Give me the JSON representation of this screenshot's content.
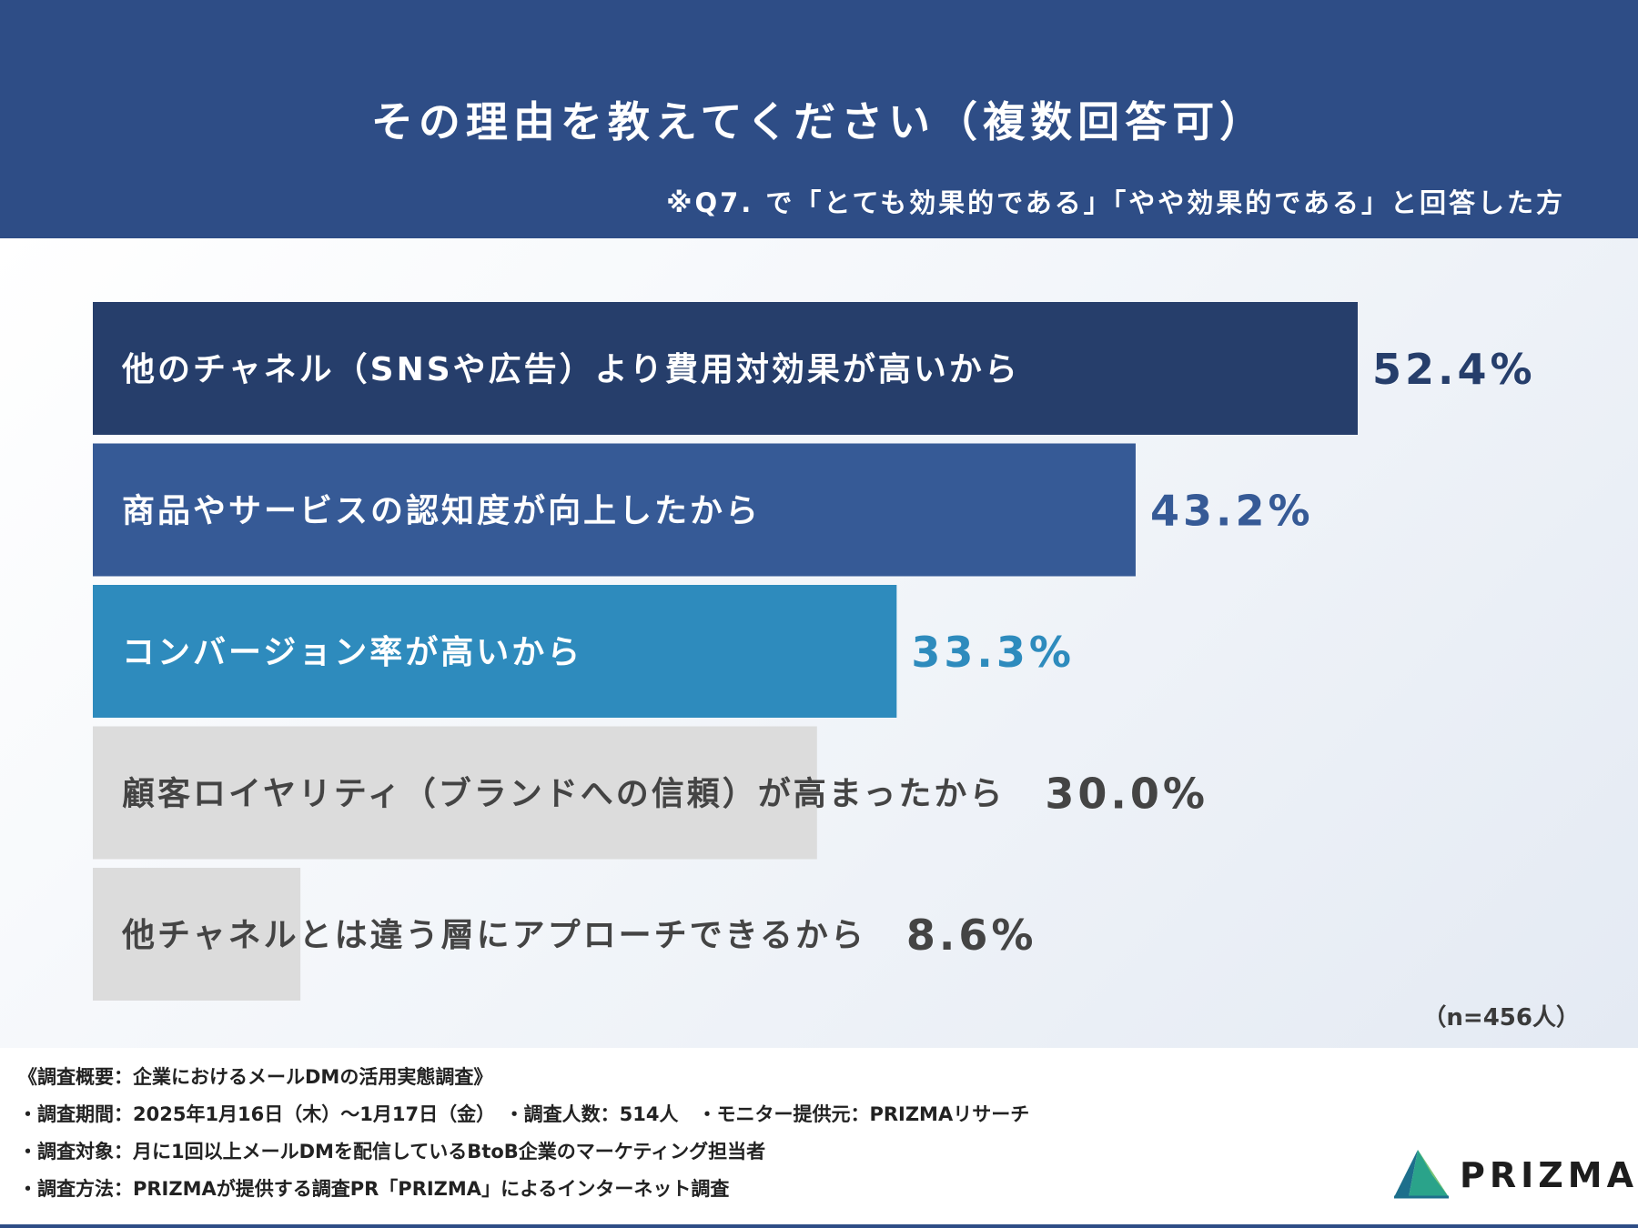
{
  "header": {
    "title": "その理由を教えてください（複数回答可）",
    "subnote": "※Q7. で「とても効果的である」「やや効果的である」と回答した方"
  },
  "chart_data": {
    "type": "bar",
    "orientation": "horizontal",
    "title": "その理由を教えてください（複数回答可）",
    "categories": [
      "他のチャネル（SNSや広告）より費用対効果が高いから",
      "商品やサービスの認知度が向上したから",
      "コンバージョン率が高いから",
      "顧客ロイヤリティ（ブランドへの信頼）が高まったから",
      "他チャネルとは違う層にアプローチできるから"
    ],
    "values": [
      52.4,
      43.2,
      33.3,
      30.0,
      8.6
    ],
    "value_labels": [
      "52.4%",
      "43.2%",
      "33.3%",
      "30.0%",
      "8.6%"
    ],
    "unit": "%",
    "colors": [
      "#263e6b",
      "#365a96",
      "#2e8bbd",
      "#dcdcdc",
      "#dcdcdc"
    ],
    "label_colors": [
      "#ffffff",
      "#ffffff",
      "#ffffff",
      "#444444",
      "#444444"
    ],
    "value_colors": [
      "#263e6b",
      "#365a96",
      "#2e8bbd",
      "#444444",
      "#444444"
    ],
    "xlim": [
      0,
      52.4
    ],
    "grid": false,
    "legend": "none"
  },
  "sample_note": "（n=456人）",
  "footer": {
    "lines": [
      "《調査概要：企業におけるメールDMの活用実態調査》",
      "・調査期間：2025年1月16日（木）～1月17日（金）　・調査人数：514人　・モニター提供元：PRIZMAリサーチ",
      "・調査対象：月に1回以上メールDMを配信しているBtoB企業のマーケティング担当者",
      "・調査方法：PRIZMAが提供する調査PR「PRIZMA」によるインターネット調査"
    ]
  },
  "logo": {
    "text": "PRIZMA",
    "colors": [
      "#1d6f8c",
      "#2aa38a",
      "#7cc576"
    ]
  }
}
